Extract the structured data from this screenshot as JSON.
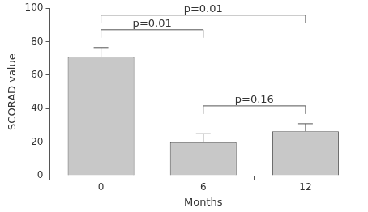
{
  "chart_data": {
    "type": "bar",
    "categories": [
      "0",
      "6",
      "12"
    ],
    "values": [
      71,
      20,
      26.5
    ],
    "errors": [
      5.5,
      5,
      4.5
    ],
    "color": "#c8c8c8",
    "x_label": "Months",
    "y_label": "SCORAD value",
    "ylim": [
      0,
      100
    ],
    "yticks": [
      0,
      20,
      40,
      60,
      80,
      100
    ],
    "grid": false,
    "annotations": [
      {
        "from": "0",
        "to": "6",
        "text": "p=0.01"
      },
      {
        "from": "6",
        "to": "12",
        "text": "p=0.16"
      },
      {
        "from": "0",
        "to": "12",
        "text": "p=0.01"
      }
    ]
  }
}
